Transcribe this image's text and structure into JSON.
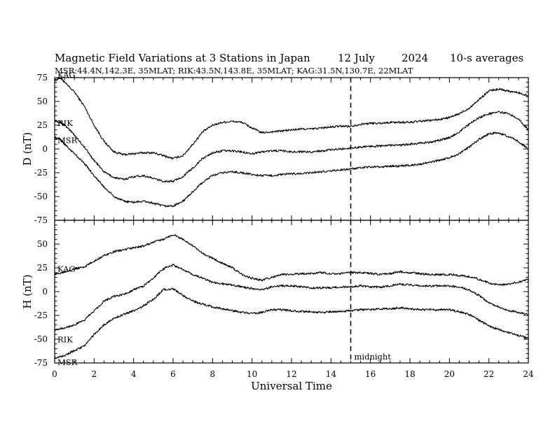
{
  "header": {
    "title": "Magnetic Field Variations at 3 Stations in Japan",
    "date": "12 July",
    "year": "2024",
    "averaging": "10-s averages",
    "stations_line": "MSR:44.4N,142.3E, 35MLAT;  RIK:43.5N,143.8E, 35MLAT;  KAG:31.5N,130.7E, 22MLAT"
  },
  "chart_data": [
    {
      "type": "line",
      "panel": "top",
      "ylabel": "D (nT)",
      "xlabel": "",
      "xlim": [
        0,
        24
      ],
      "ylim": [
        -75,
        75
      ],
      "yticks": [
        "75",
        "50",
        "25",
        "0",
        "-25",
        "-50",
        "-75"
      ],
      "annotations": [],
      "series": [
        {
          "name": "KAG",
          "x": [
            0,
            0.3,
            0.5,
            1,
            1.5,
            2,
            2.5,
            3,
            3.5,
            4,
            4.5,
            5,
            5.5,
            6,
            6.5,
            7,
            7.5,
            8,
            8.5,
            9,
            9.5,
            10,
            10.5,
            11,
            11.5,
            12,
            12.5,
            13,
            13.5,
            14,
            14.5,
            15,
            15.5,
            16,
            16.5,
            17,
            17.5,
            18,
            18.5,
            19,
            19.5,
            20,
            20.5,
            21,
            21.5,
            22,
            22.5,
            23,
            23.5,
            24
          ],
          "y": [
            72,
            75,
            70,
            60,
            45,
            25,
            8,
            -3,
            -6,
            -5,
            -4,
            -4,
            -7,
            -10,
            -7,
            5,
            18,
            25,
            28,
            29,
            28,
            22,
            17,
            18,
            19,
            20,
            21,
            21,
            22,
            23,
            24,
            24,
            26,
            27,
            27,
            28,
            28,
            28,
            29,
            30,
            31,
            33,
            37,
            43,
            52,
            61,
            63,
            61,
            59,
            56
          ]
        },
        {
          "name": "RIK",
          "x": [
            0,
            0.3,
            0.5,
            1,
            1.5,
            2,
            2.5,
            3,
            3.5,
            4,
            4.5,
            5,
            5.5,
            6,
            6.5,
            7,
            7.5,
            8,
            8.5,
            9,
            9.5,
            10,
            10.5,
            11,
            11.5,
            12,
            12.5,
            13,
            13.5,
            14,
            14.5,
            15,
            15.5,
            16,
            16.5,
            17,
            17.5,
            18,
            18.5,
            19,
            19.5,
            20,
            20.5,
            21,
            21.5,
            22,
            22.5,
            23,
            23.5,
            24
          ],
          "y": [
            30,
            28,
            25,
            15,
            2,
            -12,
            -24,
            -30,
            -32,
            -29,
            -28,
            -31,
            -34,
            -34,
            -29,
            -20,
            -10,
            -4,
            -2,
            -2,
            -3,
            -5,
            -3,
            -2,
            -2,
            -3,
            -3,
            -3,
            -2,
            -1,
            0,
            1,
            2,
            3,
            3,
            4,
            4,
            5,
            6,
            7,
            9,
            12,
            18,
            26,
            33,
            37,
            39,
            37,
            32,
            20
          ]
        },
        {
          "name": "MSR",
          "x": [
            0,
            0.3,
            0.5,
            1,
            1.5,
            2,
            2.5,
            3,
            3.5,
            4,
            4.5,
            5,
            5.5,
            6,
            6.5,
            7,
            7.5,
            8,
            8.5,
            9,
            9.5,
            10,
            10.5,
            11,
            11.5,
            12,
            12.5,
            13,
            13.5,
            14,
            14.5,
            15,
            15.5,
            16,
            16.5,
            17,
            17.5,
            18,
            18.5,
            19,
            19.5,
            20,
            20.5,
            21,
            21.5,
            22,
            22.5,
            23,
            23.5,
            24
          ],
          "y": [
            12,
            10,
            5,
            -5,
            -15,
            -28,
            -40,
            -50,
            -55,
            -56,
            -55,
            -57,
            -60,
            -60,
            -55,
            -45,
            -35,
            -28,
            -25,
            -24,
            -25,
            -27,
            -28,
            -28,
            -27,
            -26,
            -26,
            -25,
            -24,
            -23,
            -22,
            -21,
            -20,
            -19,
            -19,
            -18,
            -18,
            -17,
            -16,
            -14,
            -12,
            -9,
            -5,
            2,
            10,
            16,
            17,
            13,
            8,
            0
          ]
        }
      ]
    },
    {
      "type": "line",
      "panel": "bottom",
      "ylabel": "H (nT)",
      "xlabel": "Universal Time",
      "xlim": [
        0,
        24
      ],
      "ylim": [
        -75,
        75
      ],
      "yticks": [
        "",
        "50",
        "25",
        "0",
        "-25",
        "-50",
        "-75"
      ],
      "xticks": [
        "0",
        "2",
        "4",
        "6",
        "8",
        "10",
        "12",
        "14",
        "16",
        "18",
        "20",
        "22",
        "24"
      ],
      "annotations": [
        {
          "x": 15,
          "text": "midnight",
          "style": "dashed-vertical"
        }
      ],
      "series": [
        {
          "name": "KAG",
          "x": [
            0,
            0.5,
            1,
            1.5,
            2,
            2.5,
            3,
            3.5,
            4,
            4.5,
            5,
            5.5,
            6,
            6.5,
            7,
            7.5,
            8,
            8.5,
            9,
            9.5,
            10,
            10.5,
            11,
            11.5,
            12,
            12.5,
            13,
            13.5,
            14,
            14.5,
            15,
            15.5,
            16,
            16.5,
            17,
            17.5,
            18,
            18.5,
            19,
            19.5,
            20,
            20.5,
            21,
            21.5,
            22,
            22.5,
            23,
            23.5,
            24
          ],
          "y": [
            18,
            21,
            24,
            26,
            32,
            38,
            42,
            44,
            46,
            48,
            52,
            55,
            60,
            55,
            48,
            40,
            35,
            30,
            25,
            18,
            14,
            12,
            15,
            18,
            18,
            19,
            19,
            20,
            19,
            19,
            20,
            20,
            19,
            18,
            19,
            21,
            20,
            19,
            18,
            18,
            18,
            17,
            16,
            13,
            9,
            7,
            8,
            10,
            13
          ]
        },
        {
          "name": "RIK",
          "x": [
            0,
            0.5,
            1,
            1.5,
            2,
            2.5,
            3,
            3.5,
            4,
            4.5,
            5,
            5.5,
            6,
            6.5,
            7,
            7.5,
            8,
            8.5,
            9,
            9.5,
            10,
            10.5,
            11,
            11.5,
            12,
            12.5,
            13,
            13.5,
            14,
            14.5,
            15,
            15.5,
            16,
            16.5,
            17,
            17.5,
            18,
            18.5,
            19,
            19.5,
            20,
            20.5,
            21,
            21.5,
            22,
            22.5,
            23,
            23.5,
            24
          ],
          "y": [
            -40,
            -38,
            -35,
            -30,
            -20,
            -10,
            -5,
            -3,
            2,
            6,
            14,
            24,
            28,
            23,
            18,
            14,
            10,
            8,
            7,
            5,
            3,
            2,
            5,
            6,
            6,
            5,
            4,
            4,
            4,
            5,
            5,
            6,
            5,
            5,
            6,
            8,
            7,
            6,
            6,
            6,
            6,
            5,
            2,
            -4,
            -12,
            -16,
            -20,
            -22,
            -24
          ]
        },
        {
          "name": "MSR",
          "x": [
            0,
            0.5,
            1,
            1.5,
            2,
            2.5,
            3,
            3.5,
            4,
            4.5,
            5,
            5.5,
            6,
            6.5,
            7,
            7.5,
            8,
            8.5,
            9,
            9.5,
            10,
            10.5,
            11,
            11.5,
            12,
            12.5,
            13,
            13.5,
            14,
            14.5,
            15,
            15.5,
            16,
            16.5,
            17,
            17.5,
            18,
            18.5,
            19,
            19.5,
            20,
            20.5,
            21,
            21.5,
            22,
            22.5,
            23,
            23.5,
            24
          ],
          "y": [
            -70,
            -67,
            -62,
            -57,
            -45,
            -35,
            -28,
            -24,
            -20,
            -15,
            -8,
            2,
            3,
            -4,
            -10,
            -13,
            -16,
            -18,
            -20,
            -22,
            -23,
            -22,
            -19,
            -19,
            -20,
            -21,
            -21,
            -22,
            -21,
            -21,
            -20,
            -19,
            -19,
            -18,
            -18,
            -17,
            -18,
            -19,
            -19,
            -19,
            -19,
            -21,
            -24,
            -30,
            -36,
            -40,
            -43,
            -46,
            -49
          ]
        }
      ]
    }
  ]
}
